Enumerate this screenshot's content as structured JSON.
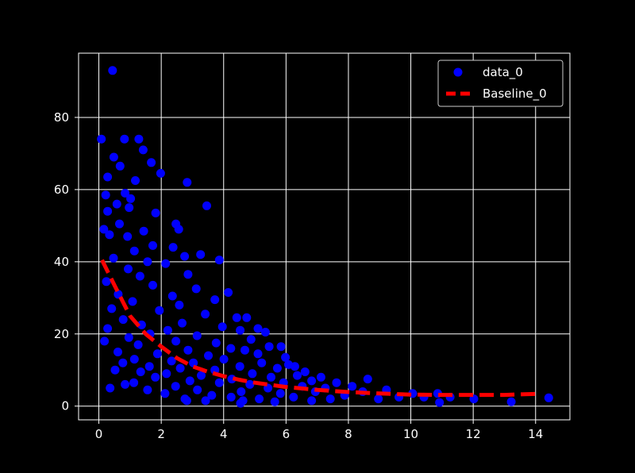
{
  "chart_data": {
    "type": "scatter",
    "title": "",
    "xlabel": "",
    "ylabel": "",
    "xlim": [
      -0.65,
      15.1
    ],
    "ylim": [
      -3.8,
      97.8
    ],
    "x_ticks": [
      0,
      2,
      4,
      6,
      8,
      10,
      12,
      14
    ],
    "y_ticks": [
      0,
      20,
      40,
      60,
      80
    ],
    "x_tick_labels": [
      "0",
      "2",
      "4",
      "6",
      "8",
      "10",
      "12",
      "14"
    ],
    "y_tick_labels": [
      "0",
      "20",
      "40",
      "60",
      "80"
    ],
    "grid": true,
    "legend_position": "top-right",
    "background_color": "#000000",
    "series": [
      {
        "name": "data_0",
        "kind": "scatter",
        "color": "#0000ff",
        "points": [
          [
            0.44,
            93
          ],
          [
            0.08,
            74
          ],
          [
            0.82,
            74
          ],
          [
            1.28,
            74
          ],
          [
            1.42,
            71
          ],
          [
            0.48,
            69
          ],
          [
            1.68,
            67.5
          ],
          [
            0.68,
            66.5
          ],
          [
            1.98,
            64.5
          ],
          [
            0.28,
            63.5
          ],
          [
            1.17,
            62.5
          ],
          [
            2.83,
            62
          ],
          [
            0.84,
            59
          ],
          [
            0.22,
            58.5
          ],
          [
            1.02,
            57.5
          ],
          [
            0.58,
            56
          ],
          [
            3.46,
            55.5
          ],
          [
            0.97,
            55
          ],
          [
            0.28,
            54
          ],
          [
            1.82,
            53.5
          ],
          [
            2.47,
            50.5
          ],
          [
            2.56,
            49
          ],
          [
            0.16,
            49
          ],
          [
            0.66,
            50.5
          ],
          [
            1.44,
            48.5
          ],
          [
            0.34,
            47.5
          ],
          [
            0.92,
            47
          ],
          [
            1.73,
            44.5
          ],
          [
            2.38,
            44
          ],
          [
            1.14,
            43
          ],
          [
            3.26,
            42
          ],
          [
            2.75,
            41.5
          ],
          [
            3.86,
            40.5
          ],
          [
            0.47,
            41
          ],
          [
            1.56,
            40
          ],
          [
            2.14,
            39.5
          ],
          [
            0.94,
            38
          ],
          [
            2.86,
            36.5
          ],
          [
            1.32,
            36
          ],
          [
            0.24,
            34.5
          ],
          [
            1.73,
            33.5
          ],
          [
            3.12,
            32.5
          ],
          [
            4.15,
            31.5
          ],
          [
            0.62,
            31
          ],
          [
            2.36,
            30.5
          ],
          [
            3.72,
            29.5
          ],
          [
            1.08,
            29
          ],
          [
            2.58,
            28
          ],
          [
            0.41,
            27
          ],
          [
            1.94,
            26.5
          ],
          [
            3.41,
            25.5
          ],
          [
            4.42,
            24.5
          ],
          [
            4.74,
            24.5
          ],
          [
            0.78,
            24
          ],
          [
            2.67,
            23
          ],
          [
            1.37,
            22.5
          ],
          [
            3.96,
            22
          ],
          [
            0.28,
            21.5
          ],
          [
            2.21,
            21
          ],
          [
            4.53,
            21
          ],
          [
            5.1,
            21.5
          ],
          [
            5.34,
            20.5
          ],
          [
            1.64,
            20
          ],
          [
            3.15,
            19.5
          ],
          [
            0.96,
            19
          ],
          [
            4.88,
            18.5
          ],
          [
            2.47,
            18
          ],
          [
            0.18,
            18
          ],
          [
            3.76,
            17.5
          ],
          [
            5.46,
            16.5
          ],
          [
            5.84,
            16.5
          ],
          [
            1.26,
            17
          ],
          [
            4.23,
            16
          ],
          [
            2.86,
            15.5
          ],
          [
            0.61,
            15
          ],
          [
            4.68,
            15.5
          ],
          [
            5.1,
            14.5
          ],
          [
            1.88,
            14.5
          ],
          [
            3.51,
            14
          ],
          [
            5.98,
            13.5
          ],
          [
            1.14,
            13
          ],
          [
            4.01,
            13
          ],
          [
            2.33,
            12.5
          ],
          [
            6.08,
            11.5
          ],
          [
            6.28,
            11
          ],
          [
            0.77,
            12
          ],
          [
            3.03,
            12
          ],
          [
            5.22,
            12
          ],
          [
            4.52,
            11
          ],
          [
            1.62,
            11
          ],
          [
            5.72,
            10.5
          ],
          [
            2.61,
            10.5
          ],
          [
            6.61,
            9.5
          ],
          [
            3.72,
            10
          ],
          [
            0.52,
            10
          ],
          [
            1.34,
            9.5
          ],
          [
            4.92,
            9
          ],
          [
            2.17,
            9
          ],
          [
            6.36,
            8.5
          ],
          [
            7.12,
            8
          ],
          [
            3.28,
            8.5
          ],
          [
            5.52,
            8
          ],
          [
            1.81,
            8
          ],
          [
            4.26,
            7.5
          ],
          [
            6.82,
            7
          ],
          [
            2.92,
            7
          ],
          [
            8.62,
            7.5
          ],
          [
            7.62,
            6.5
          ],
          [
            5.92,
            6.5
          ],
          [
            1.12,
            6.5
          ],
          [
            3.86,
            6.5
          ],
          [
            0.84,
            6
          ],
          [
            4.84,
            6
          ],
          [
            2.46,
            5.5
          ],
          [
            6.52,
            5.5
          ],
          [
            8.12,
            5.5
          ],
          [
            7.26,
            5
          ],
          [
            9.22,
            4.5
          ],
          [
            0.36,
            5
          ],
          [
            5.42,
            5
          ],
          [
            3.16,
            4.5
          ],
          [
            1.56,
            4.5
          ],
          [
            4.56,
            4
          ],
          [
            6.94,
            4
          ],
          [
            8.46,
            4
          ],
          [
            10.06,
            3.5
          ],
          [
            10.86,
            3.5
          ],
          [
            2.12,
            3.5
          ],
          [
            5.82,
            3.5
          ],
          [
            7.88,
            3
          ],
          [
            3.62,
            3
          ],
          [
            9.62,
            2.5
          ],
          [
            10.42,
            2.5
          ],
          [
            11.26,
            2.5
          ],
          [
            6.24,
            2.5
          ],
          [
            4.24,
            2.5
          ],
          [
            8.96,
            2
          ],
          [
            12.02,
            2
          ],
          [
            2.76,
            2
          ],
          [
            5.14,
            2
          ],
          [
            7.42,
            2
          ],
          [
            14.42,
            2.3
          ],
          [
            2.82,
            1.5
          ],
          [
            4.62,
            1.5
          ],
          [
            10.92,
            1
          ],
          [
            13.22,
            1.2
          ],
          [
            4.54,
            0.8
          ],
          [
            5.64,
            1.2
          ],
          [
            6.82,
            1.5
          ],
          [
            3.42,
            1.5
          ]
        ]
      },
      {
        "name": "Baseline_0",
        "kind": "line",
        "style": "dashed",
        "color": "#ff0000",
        "points": [
          [
            0.1,
            40.5
          ],
          [
            0.5,
            33.5
          ],
          [
            1,
            25
          ],
          [
            1.5,
            20
          ],
          [
            2,
            16.5
          ],
          [
            2.5,
            13.3
          ],
          [
            3,
            11
          ],
          [
            3.5,
            9.5
          ],
          [
            4,
            8.3
          ],
          [
            4.5,
            7.3
          ],
          [
            5,
            6.5
          ],
          [
            6,
            5.3
          ],
          [
            7,
            4.5
          ],
          [
            8,
            3.9
          ],
          [
            9,
            3.5
          ],
          [
            10,
            3.2
          ],
          [
            11,
            3.1
          ],
          [
            12,
            3.1
          ],
          [
            13,
            3.1
          ],
          [
            14,
            3.4
          ]
        ]
      }
    ]
  }
}
